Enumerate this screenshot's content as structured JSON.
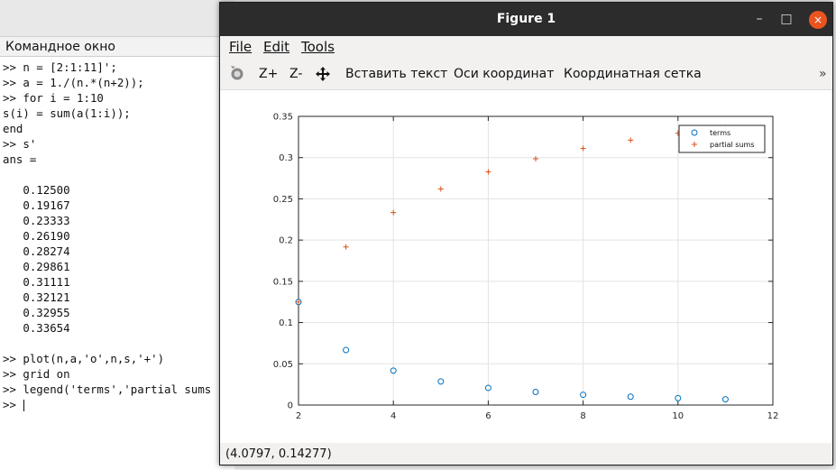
{
  "command_window": {
    "title": "Командное окно",
    "lines": [
      ">> n = [2:1:11]';",
      ">> a = 1./(n.*(n+2));",
      ">> for i = 1:10",
      "s(i) = sum(a(1:i));",
      "end",
      ">> s'",
      "ans =",
      "",
      "   0.12500",
      "   0.19167",
      "   0.23333",
      "   0.26190",
      "   0.28274",
      "   0.29861",
      "   0.31111",
      "   0.32121",
      "   0.32955",
      "   0.33654",
      "",
      ">> plot(n,a,'o',n,s,'+')",
      ">> grid on",
      ">> legend('terms','partial sums",
      ">> "
    ]
  },
  "figure": {
    "title": "Figure 1",
    "window_buttons": {
      "minimize": "–",
      "maximize": "□",
      "close": "×"
    },
    "menu": [
      "File",
      "Edit",
      "Tools"
    ],
    "toolbar": {
      "zoom_in": "Z+",
      "zoom_out": "Z-",
      "insert_text": "Вставить текст",
      "axes": "Оси координат",
      "grid": "Координатная сетка",
      "overflow": "»"
    },
    "status": "(4.0797, 0.14277)"
  },
  "colors": {
    "terms": "#0072bd",
    "partial_sums": "#d95319"
  },
  "chart_data": {
    "type": "scatter",
    "x": [
      2,
      3,
      4,
      5,
      6,
      7,
      8,
      9,
      10,
      11
    ],
    "xlim": [
      2,
      12
    ],
    "ylim": [
      0,
      0.35
    ],
    "xticks": [
      "2",
      "4",
      "6",
      "8",
      "10",
      "12"
    ],
    "yticks": [
      "0",
      "0.05",
      "0.1",
      "0.15",
      "0.2",
      "0.25",
      "0.3",
      "0.35"
    ],
    "grid": true,
    "legend_position": "top-right",
    "series": [
      {
        "name": "terms",
        "marker": "o",
        "values": [
          0.125,
          0.06667,
          0.04167,
          0.02857,
          0.02083,
          0.01587,
          0.0125,
          0.0101,
          0.00833,
          0.00699
        ]
      },
      {
        "name": "partial sums",
        "marker": "+",
        "values": [
          0.125,
          0.19167,
          0.23333,
          0.2619,
          0.28274,
          0.29861,
          0.31111,
          0.32121,
          0.32955,
          0.33654
        ]
      }
    ]
  }
}
